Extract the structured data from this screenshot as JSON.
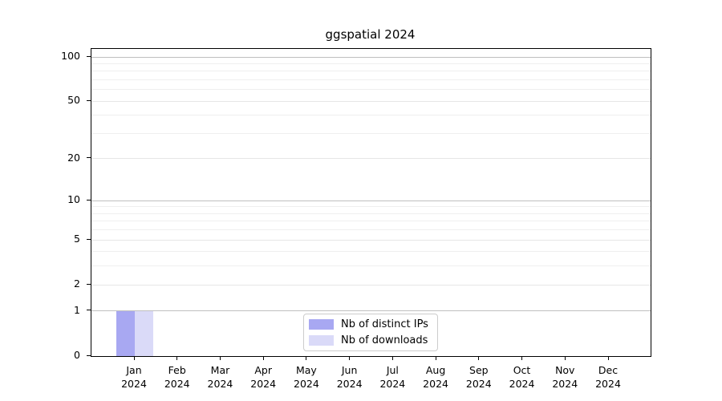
{
  "chart_data": {
    "type": "bar",
    "title": "ggspatial 2024",
    "categories": [
      "Jan",
      "Feb",
      "Mar",
      "Apr",
      "May",
      "Jun",
      "Jul",
      "Aug",
      "Sep",
      "Oct",
      "Nov",
      "Dec"
    ],
    "category_year": "2024",
    "series": [
      {
        "name": "Nb of distinct IPs",
        "color": "#a8a8f2",
        "values": [
          1,
          0,
          0,
          0,
          0,
          0,
          0,
          0,
          0,
          0,
          0,
          0
        ]
      },
      {
        "name": "Nb of downloads",
        "color": "#dadaf8",
        "values": [
          1,
          0,
          0,
          0,
          0,
          0,
          0,
          0,
          0,
          0,
          0,
          0
        ]
      }
    ],
    "xlabel": "",
    "ylabel": "",
    "yscale": "log1p",
    "ylim": [
      0,
      113
    ],
    "yticks": [
      0,
      1,
      2,
      5,
      10,
      20,
      50,
      100
    ],
    "ytick_labels": [
      "0",
      "1",
      "2",
      "5",
      "10",
      "20",
      "50",
      "100"
    ],
    "minor_yticks": [
      3,
      4,
      6,
      7,
      8,
      9,
      30,
      40,
      60,
      70,
      80,
      90
    ],
    "grid": "horizontal",
    "legend_position": "inside-bottom-center",
    "colors": {
      "frame": "#000000",
      "decade_gridline": "#bfbfbf",
      "labeled_gridline": "#e6e6e6",
      "minor_gridline": "#efefef",
      "legend_border": "#cccccc",
      "background": "#ffffff"
    }
  }
}
